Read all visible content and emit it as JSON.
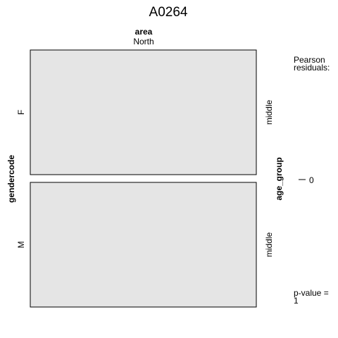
{
  "chart_data": {
    "type": "mosaic",
    "title": "A0264",
    "column_variable": "area",
    "column_levels": [
      "North"
    ],
    "row_variable": "gendercode",
    "row_levels": [
      "F",
      "M"
    ],
    "right_variable": "age_group",
    "right_levels": [
      "middle",
      "middle"
    ],
    "cells": [
      {
        "gendercode": "F",
        "area": "North",
        "age_group": "middle",
        "share": 0.5,
        "pearson_residual": 0
      },
      {
        "gendercode": "M",
        "area": "North",
        "age_group": "middle",
        "share": 0.5,
        "pearson_residual": 0
      }
    ],
    "legend": {
      "title_line1": "Pearson",
      "title_line2": "residuals:",
      "ticks": [
        "0"
      ],
      "tick_values": [
        0
      ],
      "pvalue_line1": "p-value =",
      "pvalue_line2": "1"
    },
    "cell_fill": "#e5e5e5",
    "cell_stroke": "#000000"
  }
}
